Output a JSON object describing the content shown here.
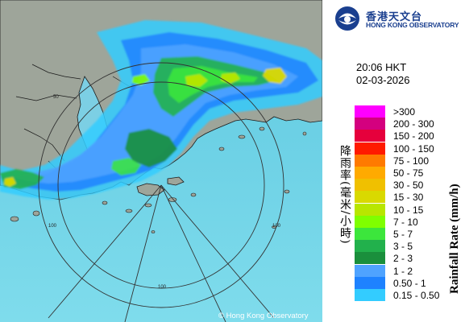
{
  "logo": {
    "chinese": "香港天文台",
    "english": "HONG KONG OBSERVATORY"
  },
  "timestamp": {
    "time": "20:06 HKT",
    "date": "02-03-2026"
  },
  "legend": {
    "title_chinese": "降雨率(毫米/小時)",
    "title_english": "Rainfall Rate (mm/h)",
    "items": [
      {
        "label": ">300",
        "color": "#ff00ff"
      },
      {
        "label": "200 - 300",
        "color": "#d4007f"
      },
      {
        "label": "150 - 200",
        "color": "#e6003c"
      },
      {
        "label": "100 - 150",
        "color": "#ff1a00"
      },
      {
        "label": "75 - 100",
        "color": "#ff7a00"
      },
      {
        "label": "50 - 75",
        "color": "#ffaa00"
      },
      {
        "label": "30 - 50",
        "color": "#f0c000"
      },
      {
        "label": "15 - 30",
        "color": "#d9d900"
      },
      {
        "label": "10 - 15",
        "color": "#b8e600"
      },
      {
        "label": "7 - 10",
        "color": "#7fff00"
      },
      {
        "label": "5 - 7",
        "color": "#3ce63c"
      },
      {
        "label": "3 - 5",
        "color": "#22b14c"
      },
      {
        "label": "2 - 3",
        "color": "#1a8f3c"
      },
      {
        "label": "1 - 2",
        "color": "#4fa3ff"
      },
      {
        "label": "0.50 - 1",
        "color": "#1e82ff"
      },
      {
        "label": "0.15 - 0.50",
        "color": "#33ccff"
      }
    ]
  },
  "map": {
    "range_labels": [
      "50",
      "100",
      "100",
      "100"
    ],
    "copyright": "© Hong Kong Observatory",
    "colors": {
      "sea": "#6fd3e8",
      "land": "#9ea59a",
      "coast": "#1a1a1a",
      "rings": "#333333"
    }
  }
}
